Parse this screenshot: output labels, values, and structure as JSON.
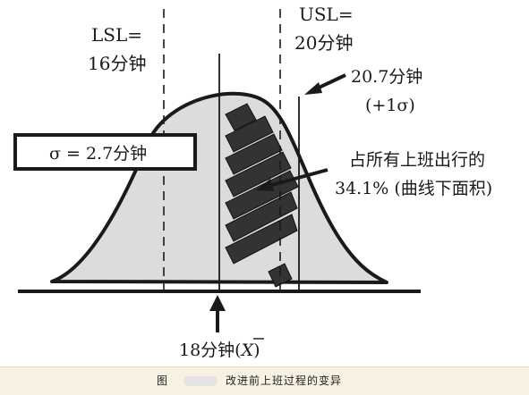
{
  "labels": {
    "lsl_line1": "LSL=",
    "lsl_line2": "16分钟",
    "usl_line1": "USL=",
    "usl_line2": "20分钟",
    "sigma_box": "σ = 2.7分钟",
    "plus_sigma_value": "20.7分钟",
    "plus_sigma_note": "(+1σ)",
    "share_line1": "占所有上班出行的",
    "share_line2": "34.1% (曲线下面积)",
    "mean_label": "18分钟(",
    "mean_symbol": "X",
    "mean_close": ")"
  },
  "caption": {
    "prefix": "图",
    "text": "改进前上班过程的变异"
  },
  "colors": {
    "curve_fill": "#dcdcdc",
    "ink": "#1a1a1a",
    "hatch": "#333333",
    "caption_bg": "#f6f1e0"
  }
}
